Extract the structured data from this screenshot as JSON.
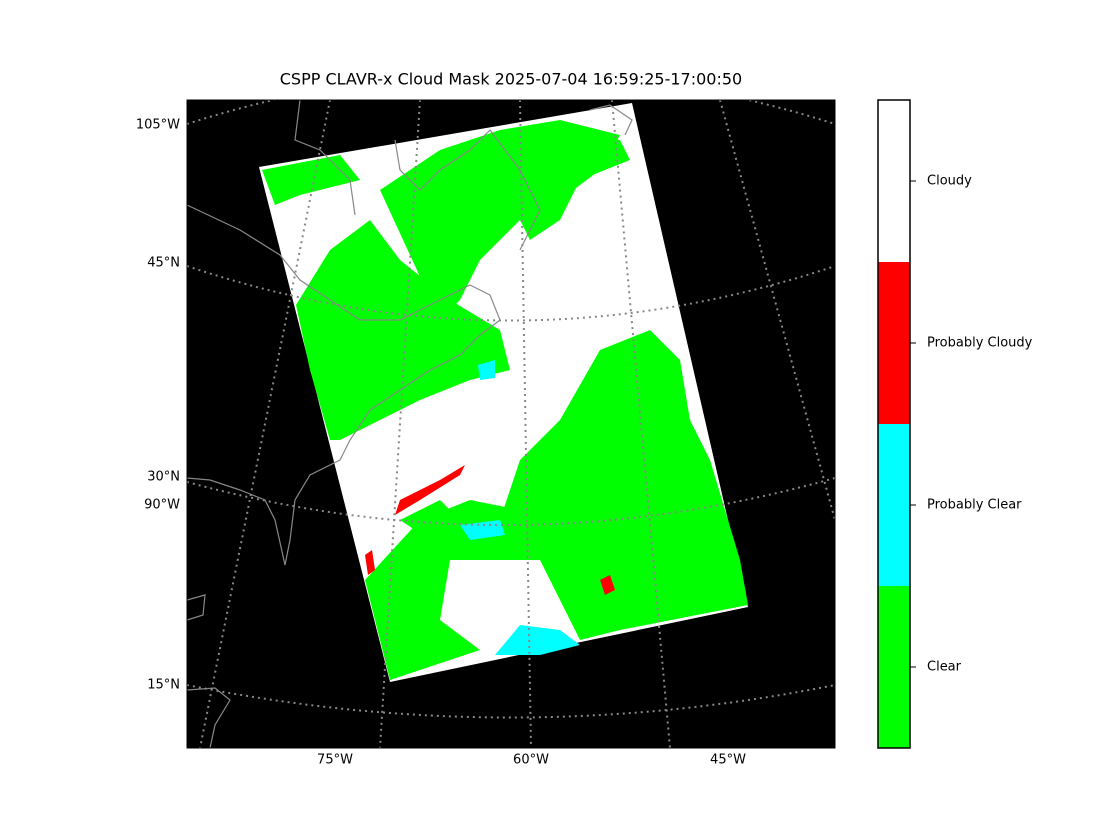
{
  "title": "CSPP CLAVR-x Cloud Mask 2025-07-04 16:59:25-17:00:50",
  "map": {
    "left_labels": [
      "105°W",
      "45°N",
      "30°N",
      "90°W",
      "15°N"
    ],
    "bottom_labels": [
      "75°W",
      "60°W",
      "45°W"
    ]
  },
  "colorbar": {
    "classes": [
      {
        "label": "Cloudy",
        "color": "#ffffff"
      },
      {
        "label": "Probably Cloudy",
        "color": "#ff0000"
      },
      {
        "label": "Probably Clear",
        "color": "#00ffff"
      },
      {
        "label": "Clear",
        "color": "#00ff00"
      }
    ]
  }
}
